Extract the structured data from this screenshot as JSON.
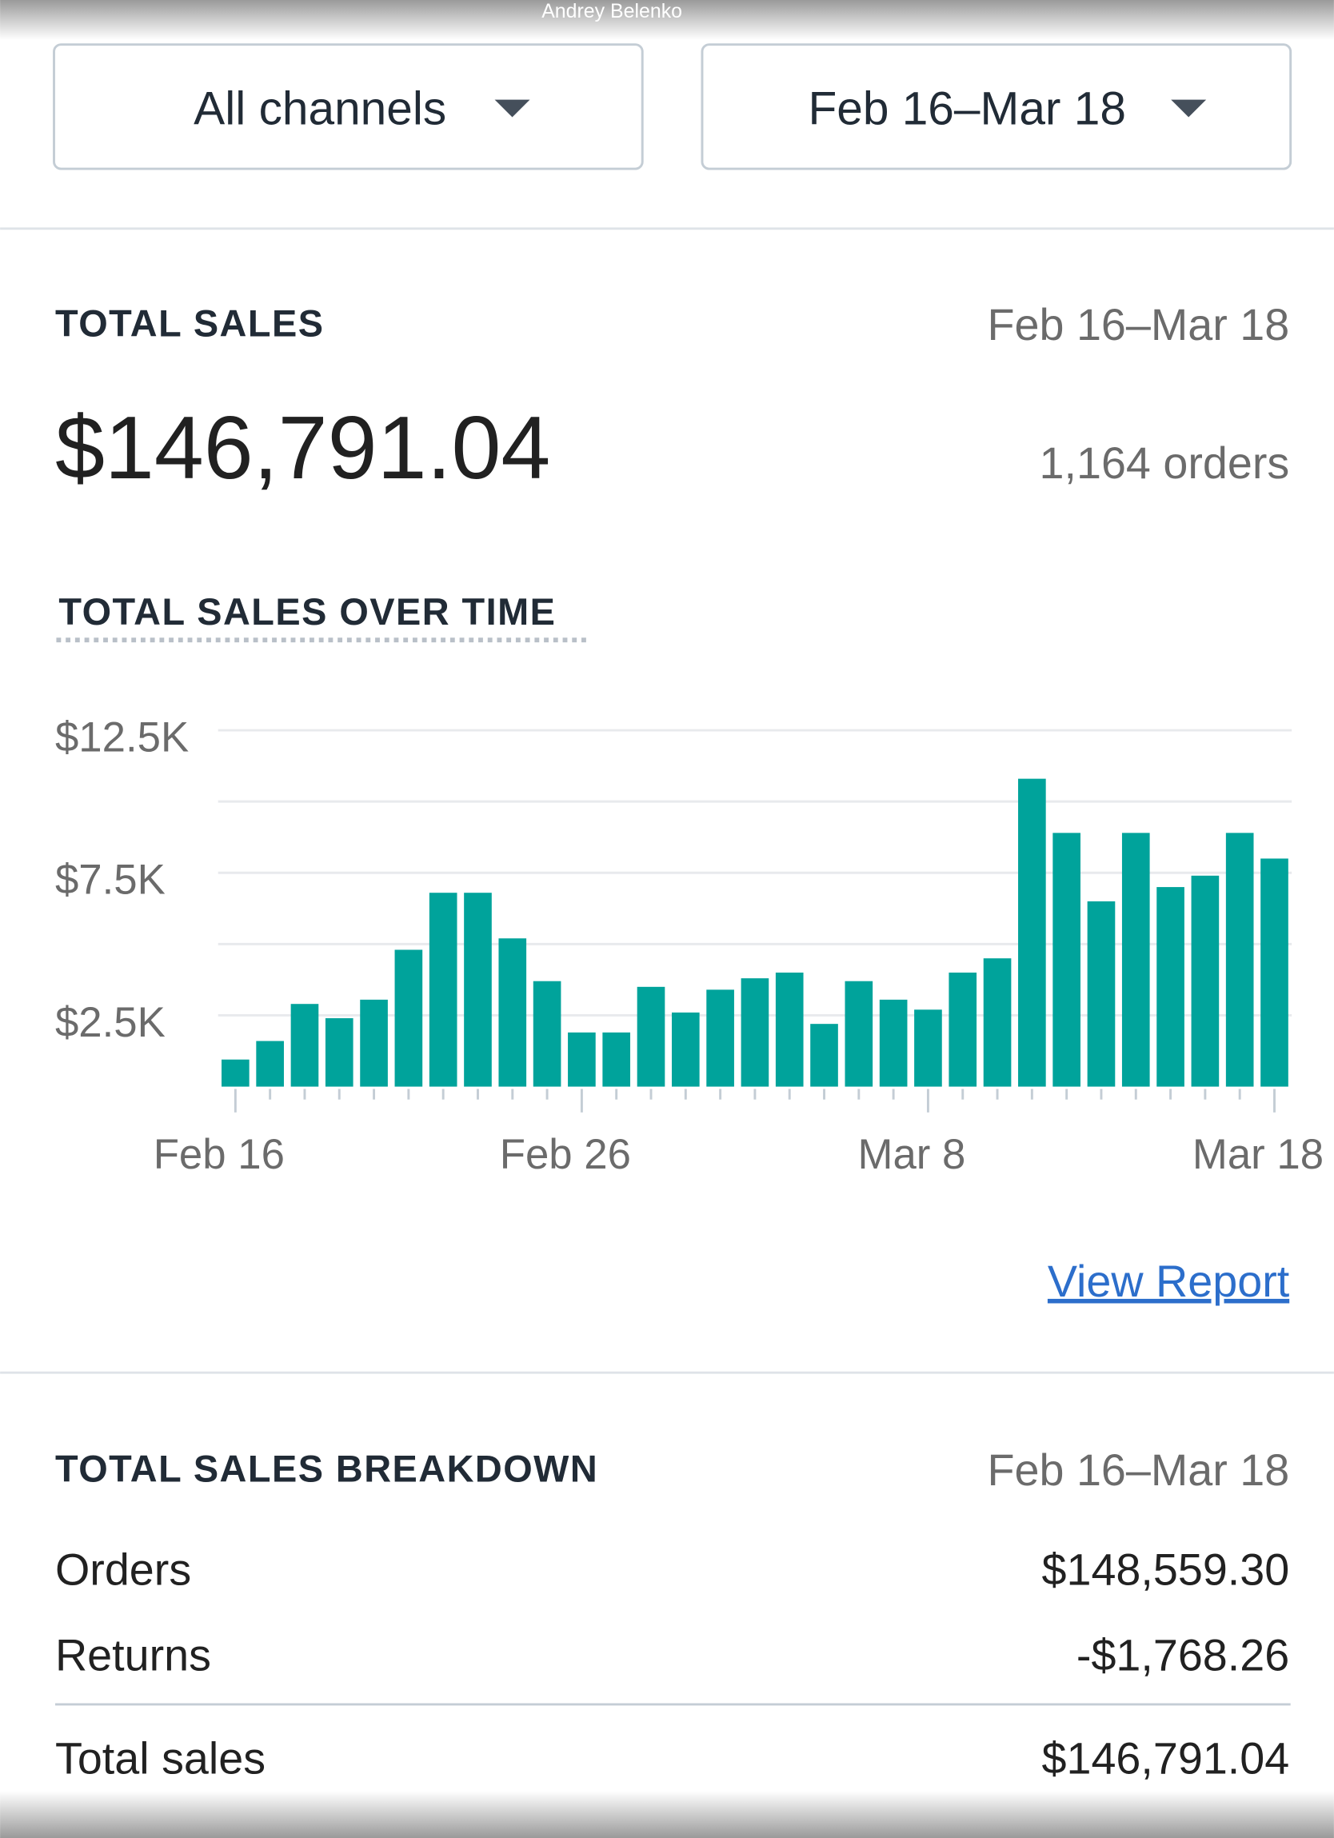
{
  "watermark": "Andrey Belenko",
  "filters": {
    "channel": "All channels",
    "date_range": "Feb 16–Mar 18"
  },
  "summary": {
    "title": "TOTAL SALES",
    "date_range": "Feb 16–Mar 18",
    "total": "$146,791.04",
    "orders": "1,164 orders"
  },
  "chart_data": {
    "type": "bar",
    "title": "TOTAL SALES OVER TIME",
    "categories": [
      "Feb 16",
      null,
      null,
      null,
      null,
      null,
      null,
      null,
      null,
      null,
      "Feb 26",
      null,
      null,
      null,
      null,
      null,
      null,
      null,
      null,
      null,
      "Mar 8",
      null,
      null,
      null,
      null,
      null,
      null,
      null,
      null,
      null,
      "Mar 18"
    ],
    "values": [
      950,
      1600,
      2900,
      2400,
      3050,
      4800,
      6800,
      6800,
      5200,
      3700,
      1900,
      1900,
      3500,
      2600,
      3400,
      3800,
      4000,
      2200,
      3700,
      3050,
      2700,
      4000,
      4500,
      10800,
      8900,
      6500,
      8900,
      7000,
      7400,
      8900,
      8000
    ],
    "color": "#00a39b",
    "ylim": [
      0,
      12500
    ],
    "yticks": [
      {
        "value": 2500,
        "label": "$2.5K"
      },
      {
        "value": 7500,
        "label": "$7.5K"
      },
      {
        "value": 12500,
        "label": "$12.5K"
      }
    ],
    "minor_yticks": [
      5000,
      10000
    ],
    "grid": true
  },
  "link": "View Report",
  "breakdown": {
    "title": "TOTAL SALES BREAKDOWN",
    "date_range": "Feb 16–Mar 18",
    "rows": [
      {
        "label": "Orders",
        "value": "$148,559.30"
      },
      {
        "label": "Returns",
        "value": "-$1,768.26"
      },
      {
        "label": "Total sales",
        "value": "$146,791.04"
      }
    ]
  }
}
